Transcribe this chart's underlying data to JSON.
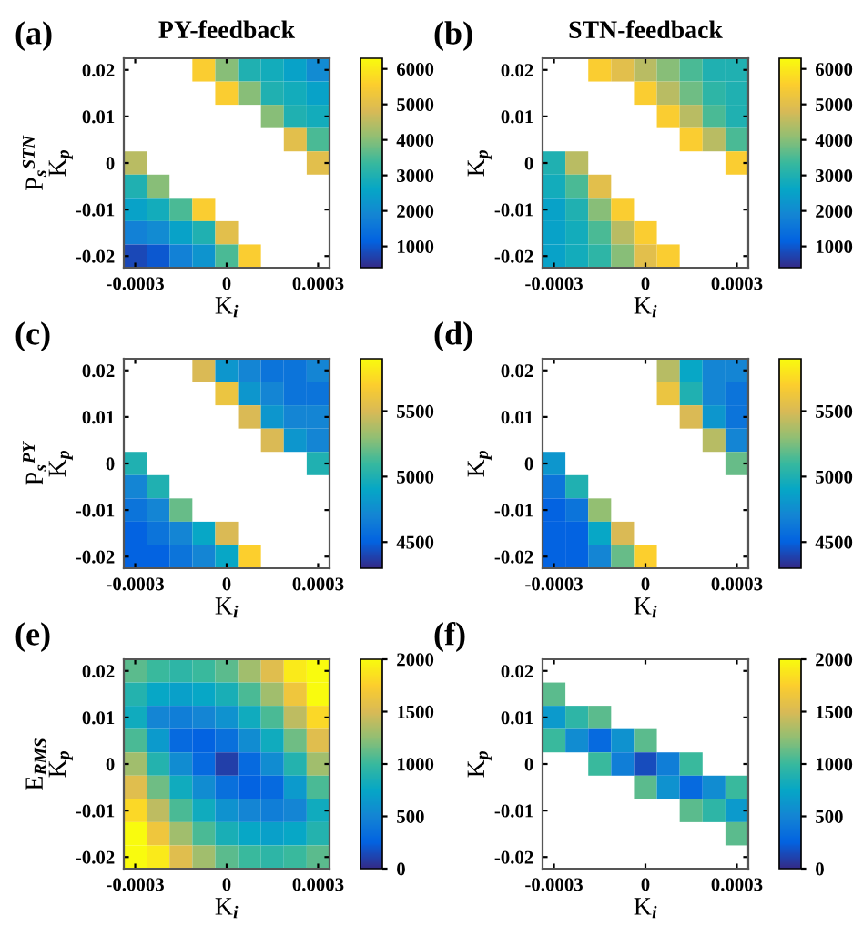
{
  "chart_data": [
    {
      "type": "heatmap",
      "title": "PY-feedback",
      "annotations": [
        "(a)"
      ],
      "xlabel": "K$_{i}$",
      "ylabel": "P$_{s}$$^{STN}$\nK$_{p}$",
      "categories": [
        "-0.0003",
        null,
        null,
        null,
        "0",
        null,
        null,
        null,
        "0.0003"
      ],
      "y_categories": [
        "0.02",
        null,
        "0.01",
        null,
        "0",
        null,
        "-0.01",
        null,
        "-0.02"
      ],
      "clim": [
        400,
        6300
      ],
      "cticks": [
        1000,
        2000,
        3000,
        4000,
        5000,
        6000
      ],
      "cells": [
        [
          null,
          null,
          null,
          5500,
          4000,
          3000,
          2800,
          2500,
          2000
        ],
        [
          null,
          null,
          null,
          null,
          5500,
          4000,
          3000,
          2800,
          2500
        ],
        [
          null,
          null,
          null,
          null,
          null,
          null,
          4000,
          3000,
          2800
        ],
        [
          null,
          null,
          null,
          null,
          null,
          null,
          null,
          5000,
          3500
        ],
        [
          4500,
          null,
          null,
          null,
          null,
          null,
          null,
          null,
          5000
        ],
        [
          3000,
          4000,
          null,
          null,
          null,
          null,
          null,
          null,
          null
        ],
        [
          2500,
          2800,
          3500,
          5500,
          null,
          null,
          null,
          null,
          null
        ],
        [
          1800,
          2000,
          2500,
          3000,
          5000,
          null,
          null,
          null,
          null
        ],
        [
          800,
          1000,
          1800,
          2200,
          3500,
          5500,
          null,
          null,
          null
        ]
      ]
    },
    {
      "type": "heatmap",
      "title": "STN-feedback",
      "annotations": [
        "(b)"
      ],
      "xlabel": "K$_{i}$",
      "ylabel": "K$_{p}$",
      "categories": [
        "-0.0003",
        null,
        null,
        null,
        "0",
        null,
        null,
        null,
        "0.0003"
      ],
      "y_categories": [
        "0.02",
        null,
        "0.01",
        null,
        "0",
        null,
        "-0.01",
        null,
        "-0.02"
      ],
      "clim": [
        400,
        6300
      ],
      "cticks": [
        1000,
        2000,
        3000,
        4000,
        5000,
        6000
      ],
      "cells": [
        [
          null,
          null,
          5500,
          5000,
          4500,
          4000,
          3500,
          3000,
          3000
        ],
        [
          null,
          null,
          null,
          null,
          5500,
          4500,
          3800,
          3200,
          3000
        ],
        [
          null,
          null,
          null,
          null,
          null,
          5500,
          4500,
          3500,
          3000
        ],
        [
          null,
          null,
          null,
          null,
          null,
          null,
          5500,
          4500,
          3500
        ],
        [
          3000,
          4500,
          null,
          null,
          null,
          null,
          null,
          null,
          5500
        ],
        [
          2800,
          3500,
          5000,
          null,
          null,
          null,
          null,
          null,
          null
        ],
        [
          2500,
          3000,
          4000,
          5500,
          null,
          null,
          null,
          null,
          null
        ],
        [
          2500,
          2800,
          3500,
          4500,
          5500,
          null,
          null,
          null,
          null
        ],
        [
          2500,
          2800,
          3200,
          4000,
          5000,
          5500,
          null,
          null,
          null
        ]
      ]
    },
    {
      "type": "heatmap",
      "annotations": [
        "(c)"
      ],
      "xlabel": "K$_{i}$",
      "ylabel": "P$_{s}$$^{PY}$\nK$_{p}$",
      "categories": [
        "-0.0003",
        null,
        null,
        null,
        "0",
        null,
        null,
        null,
        "0.0003"
      ],
      "y_categories": [
        "0.02",
        null,
        "0.01",
        null,
        "0",
        null,
        "-0.01",
        null,
        "-0.02"
      ],
      "clim": [
        4300,
        5900
      ],
      "cticks": [
        4500,
        5000,
        5500
      ],
      "cells": [
        [
          null,
          null,
          null,
          5500,
          4800,
          4700,
          4600,
          4600,
          4700
        ],
        [
          null,
          null,
          null,
          null,
          5600,
          4800,
          4700,
          4600,
          4600
        ],
        [
          null,
          null,
          null,
          null,
          null,
          5500,
          4800,
          4700,
          4700
        ],
        [
          null,
          null,
          null,
          null,
          null,
          null,
          5500,
          4800,
          4700
        ],
        [
          5000,
          null,
          null,
          null,
          null,
          null,
          null,
          null,
          5000
        ],
        [
          4700,
          5000,
          null,
          null,
          null,
          null,
          null,
          null,
          null
        ],
        [
          4600,
          4700,
          5200,
          null,
          null,
          null,
          null,
          null,
          null
        ],
        [
          4500,
          4600,
          4700,
          4900,
          5500,
          null,
          null,
          null,
          null
        ],
        [
          4500,
          4500,
          4600,
          4700,
          4900,
          5700,
          null,
          null,
          null
        ]
      ]
    },
    {
      "type": "heatmap",
      "annotations": [
        "(d)"
      ],
      "xlabel": "K$_{i}$",
      "ylabel": "K$_{p}$",
      "categories": [
        "-0.0003",
        null,
        null,
        null,
        "0",
        null,
        null,
        null,
        "0.0003"
      ],
      "y_categories": [
        "0.02",
        null,
        "0.01",
        null,
        "0",
        null,
        "-0.01",
        null,
        "-0.02"
      ],
      "clim": [
        4300,
        5900
      ],
      "cticks": [
        4500,
        5000,
        5500
      ],
      "cells": [
        [
          null,
          null,
          null,
          null,
          null,
          5400,
          4900,
          4700,
          4700
        ],
        [
          null,
          null,
          null,
          null,
          null,
          5600,
          5000,
          4700,
          4600
        ],
        [
          null,
          null,
          null,
          null,
          null,
          null,
          5500,
          4800,
          4600
        ],
        [
          null,
          null,
          null,
          null,
          null,
          null,
          null,
          5400,
          4700
        ],
        [
          4800,
          null,
          null,
          null,
          null,
          null,
          null,
          null,
          5200
        ],
        [
          4600,
          5000,
          null,
          null,
          null,
          null,
          null,
          null,
          null
        ],
        [
          4500,
          4600,
          5300,
          null,
          null,
          null,
          null,
          null,
          null
        ],
        [
          4500,
          4500,
          4900,
          5500,
          null,
          null,
          null,
          null,
          null
        ],
        [
          4500,
          4500,
          4700,
          5200,
          5700,
          null,
          null,
          null,
          null
        ]
      ]
    },
    {
      "type": "heatmap",
      "annotations": [
        "(e)"
      ],
      "xlabel": "K$_{i}$",
      "ylabel": "E$_{RMS}$\nK$_{p}$",
      "categories": [
        "-0.0003",
        null,
        null,
        null,
        "0",
        null,
        null,
        null,
        "0.0003"
      ],
      "y_categories": [
        "0.02",
        null,
        "0.01",
        null,
        "0",
        null,
        "-0.01",
        null,
        "-0.02"
      ],
      "clim": [
        0,
        2000
      ],
      "cticks": [
        0,
        500,
        1000,
        1500,
        2000
      ],
      "cells": [
        [
          1100,
          1000,
          950,
          1000,
          1100,
          1300,
          1550,
          1900,
          2000
        ],
        [
          900,
          750,
          700,
          750,
          850,
          1050,
          1300,
          1650,
          2000
        ],
        [
          800,
          500,
          450,
          500,
          600,
          800,
          1050,
          1400,
          1800
        ],
        [
          1050,
          650,
          300,
          250,
          350,
          550,
          800,
          1150,
          1550
        ],
        [
          1300,
          900,
          550,
          300,
          100,
          300,
          550,
          900,
          1300
        ],
        [
          1550,
          1150,
          800,
          550,
          350,
          250,
          300,
          650,
          1050
        ],
        [
          1800,
          1400,
          1050,
          800,
          600,
          500,
          450,
          500,
          800
        ],
        [
          2000,
          1650,
          1300,
          1050,
          850,
          750,
          700,
          750,
          900
        ],
        [
          2000,
          1900,
          1550,
          1300,
          1100,
          1000,
          950,
          1000,
          1100
        ]
      ]
    },
    {
      "type": "heatmap",
      "annotations": [
        "(f)"
      ],
      "xlabel": "K$_{i}$",
      "ylabel": "K$_{p}$",
      "categories": [
        "-0.0003",
        null,
        null,
        null,
        "0",
        null,
        null,
        null,
        "0.0003"
      ],
      "y_categories": [
        "0.02",
        null,
        "0.01",
        null,
        "0",
        null,
        "-0.01",
        null,
        "-0.02"
      ],
      "clim": [
        0,
        2000
      ],
      "cticks": [
        0,
        500,
        1000,
        1500,
        2000
      ],
      "cells": [
        [
          null,
          null,
          null,
          null,
          null,
          null,
          null,
          null,
          null
        ],
        [
          1100,
          null,
          null,
          null,
          null,
          null,
          null,
          null,
          null
        ],
        [
          650,
          950,
          1100,
          null,
          null,
          null,
          null,
          null,
          null
        ],
        [
          1000,
          550,
          300,
          600,
          1100,
          null,
          null,
          null,
          null
        ],
        [
          null,
          null,
          1000,
          450,
          150,
          450,
          1000,
          null,
          null
        ],
        [
          null,
          null,
          null,
          null,
          1100,
          600,
          300,
          550,
          1000
        ],
        [
          null,
          null,
          null,
          null,
          null,
          null,
          1100,
          950,
          650
        ],
        [
          null,
          null,
          null,
          null,
          null,
          null,
          null,
          null,
          1100
        ],
        [
          null,
          null,
          null,
          null,
          null,
          null,
          null,
          null,
          null
        ]
      ]
    }
  ]
}
